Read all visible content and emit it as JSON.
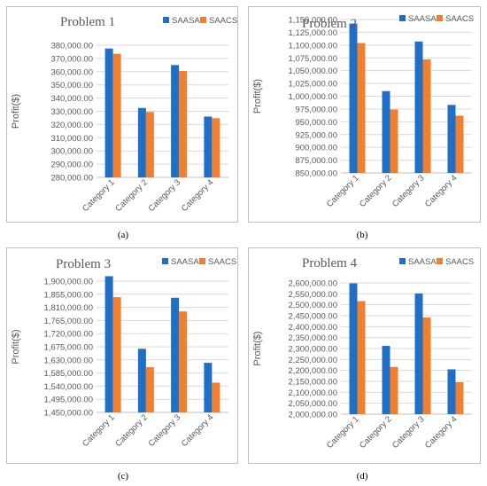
{
  "captions": [
    "(a)",
    "(b)",
    "(c)",
    "(d)"
  ],
  "chart_data": [
    {
      "type": "bar",
      "title": "Problem 1",
      "ylabel": "Profit($)",
      "categories": [
        "Category 1",
        "Category 2",
        "Category 3",
        "Category 4"
      ],
      "series": [
        {
          "name": "SAASA",
          "color": "#1f6fc6",
          "values": [
            377500,
            332500,
            365000,
            326000
          ]
        },
        {
          "name": "SAACS",
          "color": "#f07f2f",
          "values": [
            373500,
            329500,
            360500,
            324800
          ]
        }
      ],
      "ylim": [
        280000,
        380000
      ],
      "yticks": [
        280000,
        290000,
        300000,
        310000,
        320000,
        330000,
        340000,
        350000,
        360000,
        370000,
        380000
      ],
      "ytick_labels": [
        "280,000.00",
        "290,000.00",
        "300,000.00",
        "310,000.00",
        "320,000.00",
        "330,000.00",
        "340,000.00",
        "350,000.00",
        "360,000.00",
        "370,000.00",
        "380,000.00"
      ],
      "legend": "top-right"
    },
    {
      "type": "bar",
      "title": "Problem 2",
      "ylabel": "Profit($)",
      "categories": [
        "Category 1",
        "Category 2",
        "Category 3",
        "Category 4"
      ],
      "series": [
        {
          "name": "SAASA",
          "color": "#1f6fc6",
          "values": [
            1142000,
            1010000,
            1107000,
            983000
          ]
        },
        {
          "name": "SAACS",
          "color": "#f07f2f",
          "values": [
            1104000,
            974000,
            1072000,
            962000
          ]
        }
      ],
      "ylim": [
        850000,
        1150000
      ],
      "yticks": [
        850000,
        875000,
        900000,
        925000,
        950000,
        975000,
        1000000,
        1025000,
        1050000,
        1075000,
        1100000,
        1125000,
        1150000
      ],
      "ytick_labels": [
        "850,000.00",
        "875,000.00",
        "900,000.00",
        "925,000.00",
        "950,000.00",
        "975,000.00",
        "1,000,000.00",
        "1,025,000.00",
        "1,050,000.00",
        "1,075,000.00",
        "1,100,000.00",
        "1,125,000.00",
        "1,150,000.00"
      ],
      "legend": "top-right"
    },
    {
      "type": "bar",
      "title": "Problem 3",
      "ylabel": "Profit($)",
      "categories": [
        "Category 1",
        "Category 2",
        "Category 3",
        "Category 4"
      ],
      "series": [
        {
          "name": "SAASA",
          "color": "#1f6fc6",
          "values": [
            1917000,
            1668000,
            1843000,
            1620000
          ]
        },
        {
          "name": "SAACS",
          "color": "#f07f2f",
          "values": [
            1845000,
            1605000,
            1796000,
            1552000
          ]
        }
      ],
      "ylim": [
        1450000,
        1900000
      ],
      "yticks": [
        1450000,
        1495000,
        1540000,
        1585000,
        1630000,
        1675000,
        1720000,
        1765000,
        1810000,
        1855000,
        1900000
      ],
      "ytick_labels": [
        "1,450,000.00",
        "1,495,000.00",
        "1,540,000.00",
        "1,585,000.00",
        "1,630,000.00",
        "1,675,000.00",
        "1,720,000.00",
        "1,765,000.00",
        "1,810,000.00",
        "1,855,000.00",
        "1,900,000.00"
      ],
      "legend": "top-right"
    },
    {
      "type": "bar",
      "title": "Problem 4",
      "ylabel": "Profit($)",
      "categories": [
        "Category 1",
        "Category 2",
        "Category 3",
        "Category 4"
      ],
      "series": [
        {
          "name": "SAASA",
          "color": "#1f6fc6",
          "values": [
            2598000,
            2312000,
            2552000,
            2205000
          ]
        },
        {
          "name": "SAACS",
          "color": "#f07f2f",
          "values": [
            2517000,
            2216000,
            2442000,
            2146000
          ]
        }
      ],
      "ylim": [
        2000000,
        2600000
      ],
      "yticks": [
        2000000,
        2050000,
        2100000,
        2150000,
        2200000,
        2250000,
        2300000,
        2350000,
        2400000,
        2450000,
        2500000,
        2550000,
        2600000
      ],
      "ytick_labels": [
        "2,000,000.00",
        "2,050,000.00",
        "2,100,000.00",
        "2,150,000.00",
        "2,200,000.00",
        "2,250,000.00",
        "2,300,000.00",
        "2,350,000.00",
        "2,400,000.00",
        "2,450,000.00",
        "2,500,000.00",
        "2,550,000.00",
        "2,600,000.00"
      ],
      "legend": "top-right"
    }
  ]
}
